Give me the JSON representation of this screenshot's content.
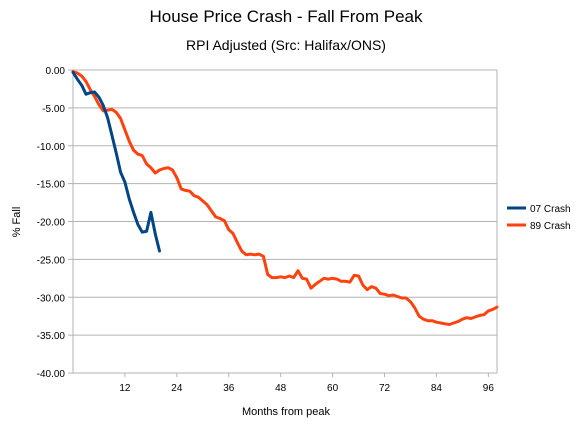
{
  "chart_data": {
    "type": "line",
    "title": "House Price Crash - Fall From Peak",
    "subtitle": "RPI Adjusted (Src: Halifax/ONS)",
    "xlabel": "Months from peak",
    "ylabel": "% Fall",
    "xlim": [
      0,
      98
    ],
    "ylim": [
      -40,
      0
    ],
    "x_ticks": [
      12,
      24,
      36,
      48,
      60,
      72,
      84,
      96
    ],
    "y_ticks": [
      0,
      -5,
      -10,
      -15,
      -20,
      -25,
      -30,
      -35,
      -40
    ],
    "y_tick_labels": [
      "0.00",
      "-5.00",
      "-10.00",
      "-15.00",
      "-20.00",
      "-25.00",
      "-30.00",
      "-35.00",
      "-40.00"
    ],
    "grid": "horizontal",
    "legend_position": "right",
    "series": [
      {
        "name": "07 Crash",
        "color": "#004586",
        "x": [
          0,
          1,
          2,
          3,
          4,
          5,
          6,
          7,
          8,
          9,
          10,
          11,
          12,
          13,
          14,
          15,
          16,
          17,
          18,
          19,
          20
        ],
        "values": [
          -0.3,
          -1.2,
          -2.0,
          -3.2,
          -3.0,
          -2.9,
          -3.6,
          -4.7,
          -6.3,
          -8.6,
          -11.0,
          -13.5,
          -14.8,
          -17.0,
          -18.8,
          -20.4,
          -21.4,
          -21.3,
          -18.8,
          -21.6,
          -23.9
        ]
      },
      {
        "name": "89 Crash",
        "color": "#ff420e",
        "x": [
          0,
          1,
          2,
          3,
          4,
          5,
          6,
          7,
          8,
          9,
          10,
          11,
          12,
          13,
          14,
          15,
          16,
          17,
          18,
          19,
          20,
          21,
          22,
          23,
          24,
          25,
          26,
          27,
          28,
          29,
          30,
          31,
          32,
          33,
          34,
          35,
          36,
          37,
          38,
          39,
          40,
          41,
          42,
          43,
          44,
          45,
          46,
          47,
          48,
          49,
          50,
          51,
          52,
          53,
          54,
          55,
          56,
          57,
          58,
          59,
          60,
          61,
          62,
          63,
          64,
          65,
          66,
          67,
          68,
          69,
          70,
          71,
          72,
          73,
          74,
          75,
          76,
          77,
          78,
          79,
          80,
          81,
          82,
          83,
          84,
          85,
          86,
          87,
          88,
          89,
          90,
          91,
          92,
          93,
          94,
          95,
          96,
          97,
          98
        ],
        "values": [
          -0.2,
          -0.4,
          -0.8,
          -1.5,
          -2.6,
          -3.5,
          -4.6,
          -5.4,
          -5.3,
          -5.2,
          -5.6,
          -6.4,
          -7.9,
          -9.4,
          -10.6,
          -11.1,
          -11.3,
          -12.4,
          -12.9,
          -13.6,
          -13.2,
          -13.0,
          -12.9,
          -13.2,
          -14.2,
          -15.7,
          -15.9,
          -16.0,
          -16.6,
          -16.8,
          -17.3,
          -17.8,
          -18.6,
          -19.4,
          -19.6,
          -19.9,
          -21.1,
          -21.6,
          -22.8,
          -23.9,
          -24.4,
          -24.3,
          -24.4,
          -24.3,
          -24.6,
          -27.0,
          -27.4,
          -27.4,
          -27.3,
          -27.4,
          -27.2,
          -27.4,
          -26.5,
          -27.5,
          -27.6,
          -28.8,
          -28.3,
          -27.9,
          -27.5,
          -27.6,
          -27.5,
          -27.6,
          -27.9,
          -27.9,
          -28.0,
          -27.1,
          -27.2,
          -28.4,
          -29.0,
          -28.6,
          -28.8,
          -29.5,
          -29.6,
          -29.8,
          -29.7,
          -29.9,
          -30.1,
          -30.1,
          -30.6,
          -31.4,
          -32.5,
          -32.9,
          -33.1,
          -33.1,
          -33.3,
          -33.4,
          -33.5,
          -33.6,
          -33.4,
          -33.2,
          -32.9,
          -32.7,
          -32.8,
          -32.6,
          -32.4,
          -32.3,
          -31.8,
          -31.6,
          -31.3
        ]
      }
    ]
  }
}
